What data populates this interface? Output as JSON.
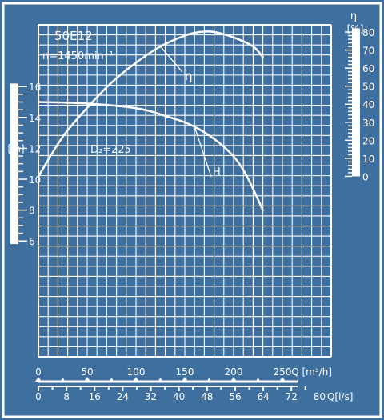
{
  "colors": {
    "background": "#3f6f9e",
    "ink": "#ffffff"
  },
  "chart_data": {
    "type": "line",
    "pump_model": "50E12",
    "speed_label": "n=1450min⁻¹",
    "impeller_label": "D₂=225",
    "grid": true,
    "x_axes": [
      {
        "label": "Q [m³/h]",
        "ticks": [
          0,
          50,
          100,
          150,
          200,
          250
        ],
        "range": [
          0,
          300
        ]
      },
      {
        "label": "Q[l/s]",
        "ticks": [
          0,
          8,
          16,
          24,
          32,
          40,
          48,
          56,
          64,
          72,
          80
        ],
        "range": [
          0,
          83.33
        ]
      }
    ],
    "y_axes": [
      {
        "side": "left",
        "symbol": "H",
        "unit": "[m]",
        "ticks": [
          6,
          8,
          10,
          12,
          14,
          16
        ],
        "range": [
          -1.5,
          20
        ]
      },
      {
        "side": "right",
        "symbol": "η",
        "unit": "[%]",
        "ticks": [
          0,
          10,
          20,
          30,
          40,
          50,
          60,
          70,
          80
        ],
        "range": [
          -100,
          84
        ]
      }
    ],
    "series": [
      {
        "name": "H",
        "axis": "left",
        "points": [
          [
            0,
            15
          ],
          [
            50,
            14.9
          ],
          [
            100,
            14.6
          ],
          [
            130,
            14.1
          ],
          [
            160,
            13.4
          ],
          [
            190,
            12.1
          ],
          [
            210,
            10.6
          ],
          [
            230,
            8.0
          ]
        ]
      },
      {
        "name": "η",
        "axis": "right",
        "points": [
          [
            0,
            0
          ],
          [
            25,
            22
          ],
          [
            50,
            38
          ],
          [
            75,
            52
          ],
          [
            100,
            63
          ],
          [
            125,
            72
          ],
          [
            150,
            78
          ],
          [
            165,
            80
          ],
          [
            180,
            80
          ],
          [
            200,
            77
          ],
          [
            220,
            72
          ],
          [
            230,
            66
          ]
        ]
      }
    ]
  }
}
